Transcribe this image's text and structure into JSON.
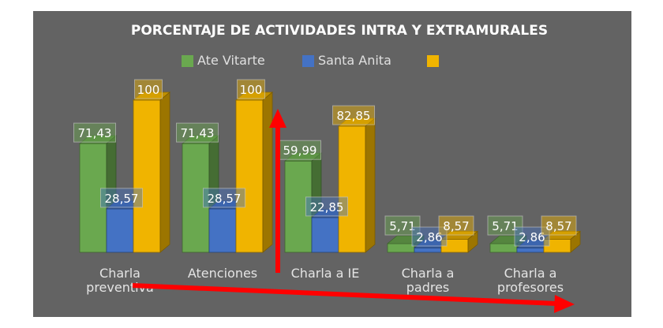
{
  "chart_data": {
    "type": "bar",
    "title": "PORCENTAJE DE ACTIVIDADES INTRA Y EXTRAMURALES",
    "categories": [
      [
        "Charla",
        "preventiva"
      ],
      [
        "Atenciones"
      ],
      [
        "Charla a IE"
      ],
      [
        "Charla a",
        "padres"
      ],
      [
        "Charla a",
        "profesores"
      ]
    ],
    "series": [
      {
        "name": "Ate Vitarte",
        "color": "#6aa84f",
        "values": [
          71.43,
          71.43,
          59.99,
          5.71,
          5.71
        ],
        "labels": [
          "71,43",
          "71,43",
          "59,99",
          "5,71",
          "5,71"
        ]
      },
      {
        "name": "Santa Anita",
        "color": "#4472c4",
        "values": [
          28.57,
          28.57,
          22.85,
          2.86,
          2.86
        ],
        "labels": [
          "28,57",
          "28,57",
          "22,85",
          "2,86",
          "2,86"
        ]
      },
      {
        "name": "",
        "color": "#f0b400",
        "values": [
          100,
          100,
          82.85,
          8.57,
          8.57
        ],
        "labels": [
          "100",
          "100",
          "82,85",
          "8,57",
          "8,57"
        ]
      }
    ],
    "ylim": [
      0,
      100
    ],
    "legend": "top",
    "grid": false,
    "background": "#636363",
    "annotations": [
      {
        "type": "arrow",
        "color": "#ff0000",
        "direction": "up"
      },
      {
        "type": "arrow",
        "color": "#ff0000",
        "direction": "right"
      }
    ]
  }
}
